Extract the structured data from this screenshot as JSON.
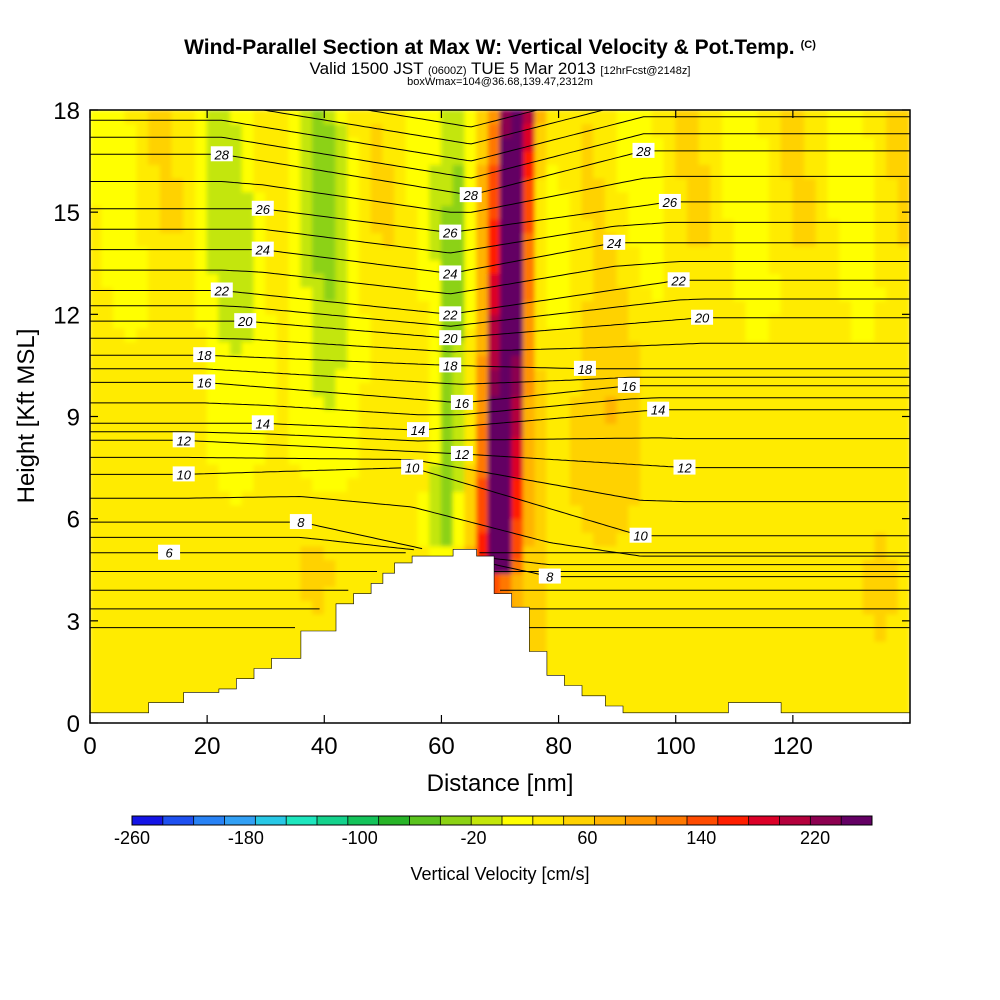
{
  "title": {
    "main": "Wind-Parallel Section at Max W: Vertical Velocity & Pot.Temp.",
    "copyright": "(C)",
    "valid_prefix": "Valid 1500 JST",
    "valid_zulu": "(0600Z)",
    "valid_date": "TUE 5 Mar 2013",
    "forecast": "[12hrFcst@2148z]",
    "box_info": "boxWmax=104@36.68,139.47,2312m"
  },
  "colors": {
    "scale": [
      "#1414e6",
      "#1e50f0",
      "#2882f5",
      "#32a0f5",
      "#28c8e6",
      "#1ee6be",
      "#14d28c",
      "#14c35a",
      "#28b428",
      "#5ac31e",
      "#8cd214",
      "#c3e60a",
      "#ffff00",
      "#ffeb00",
      "#ffd200",
      "#ffb400",
      "#ff9600",
      "#ff7800",
      "#ff4b00",
      "#ff1e00",
      "#dc0028",
      "#b4003c",
      "#8c0050",
      "#640064"
    ],
    "terrain": "#ffffff",
    "contour": "#000000"
  },
  "chart_data": {
    "type": "contour",
    "xlabel": "Distance [nm]",
    "ylabel": "Height [Kft MSL]",
    "xlim": [
      0,
      140
    ],
    "ylim": [
      0,
      18
    ],
    "x_ticks": [
      0,
      20,
      40,
      60,
      80,
      100,
      120
    ],
    "y_ticks": [
      0,
      3,
      6,
      9,
      12,
      15,
      18
    ],
    "colorbar": {
      "label": "Vertical Velocity [cm/s]",
      "min": -260,
      "max": 260,
      "step": 20,
      "tick_labels": [
        -260,
        -180,
        -100,
        -20,
        60,
        140,
        220
      ]
    },
    "terrain_profile": {
      "x": [
        0,
        10,
        16,
        22,
        25,
        28,
        31,
        36,
        42,
        45,
        48,
        50,
        52,
        55,
        62,
        66,
        69,
        72,
        75,
        78,
        81,
        84,
        88,
        91,
        100,
        109,
        118,
        125,
        140
      ],
      "height_kft": [
        0.3,
        0.6,
        0.9,
        1.0,
        1.3,
        1.6,
        1.9,
        2.7,
        3.5,
        3.8,
        4.1,
        4.4,
        4.7,
        4.9,
        5.1,
        4.9,
        3.8,
        3.4,
        2.1,
        1.4,
        1.1,
        0.8,
        0.5,
        0.3,
        0.3,
        0.6,
        0.3,
        0.3,
        0.3
      ]
    },
    "updraft_core": {
      "x": 71,
      "height_range_kft": [
        5,
        18
      ],
      "max_w_cm_s": 240
    },
    "downdraft_bands": [
      {
        "x": 62,
        "height_range_kft": [
          5,
          18
        ],
        "min_w_cm_s": -60
      },
      {
        "x": 40,
        "height_range_kft": [
          8,
          18
        ],
        "min_w_cm_s": -40
      }
    ],
    "theta_contour_labels": [
      {
        "value": 6,
        "x": 13.5,
        "y": 5.0
      },
      {
        "value": 8,
        "x": 36.0,
        "y": 5.9
      },
      {
        "value": 8,
        "x": 78.5,
        "y": 4.3
      },
      {
        "value": 10,
        "x": 16.0,
        "y": 7.3
      },
      {
        "value": 10,
        "x": 55.0,
        "y": 7.5
      },
      {
        "value": 10,
        "x": 94.0,
        "y": 5.5
      },
      {
        "value": 12,
        "x": 16.0,
        "y": 8.3
      },
      {
        "value": 12,
        "x": 63.5,
        "y": 7.9
      },
      {
        "value": 12,
        "x": 101.5,
        "y": 7.5
      },
      {
        "value": 14,
        "x": 29.5,
        "y": 8.8
      },
      {
        "value": 14,
        "x": 56.0,
        "y": 8.6
      },
      {
        "value": 14,
        "x": 97.0,
        "y": 9.2
      },
      {
        "value": 16,
        "x": 19.5,
        "y": 10.0
      },
      {
        "value": 16,
        "x": 63.5,
        "y": 9.4
      },
      {
        "value": 16,
        "x": 92.0,
        "y": 9.9
      },
      {
        "value": 18,
        "x": 19.5,
        "y": 10.8
      },
      {
        "value": 18,
        "x": 61.5,
        "y": 10.5
      },
      {
        "value": 18,
        "x": 84.5,
        "y": 10.4
      },
      {
        "value": 20,
        "x": 26.5,
        "y": 11.8
      },
      {
        "value": 20,
        "x": 61.5,
        "y": 11.3
      },
      {
        "value": 20,
        "x": 104.5,
        "y": 11.9
      },
      {
        "value": 22,
        "x": 22.5,
        "y": 12.7
      },
      {
        "value": 22,
        "x": 61.5,
        "y": 12.0
      },
      {
        "value": 22,
        "x": 100.5,
        "y": 13.0
      },
      {
        "value": 24,
        "x": 29.5,
        "y": 13.9
      },
      {
        "value": 24,
        "x": 61.5,
        "y": 13.2
      },
      {
        "value": 24,
        "x": 89.5,
        "y": 14.1
      },
      {
        "value": 26,
        "x": 29.5,
        "y": 15.1
      },
      {
        "value": 26,
        "x": 61.5,
        "y": 14.4
      },
      {
        "value": 26,
        "x": 99.0,
        "y": 15.3
      },
      {
        "value": 28,
        "x": 22.5,
        "y": 16.7
      },
      {
        "value": 28,
        "x": 65.0,
        "y": 15.5
      },
      {
        "value": 28,
        "x": 94.5,
        "y": 16.8
      }
    ]
  }
}
